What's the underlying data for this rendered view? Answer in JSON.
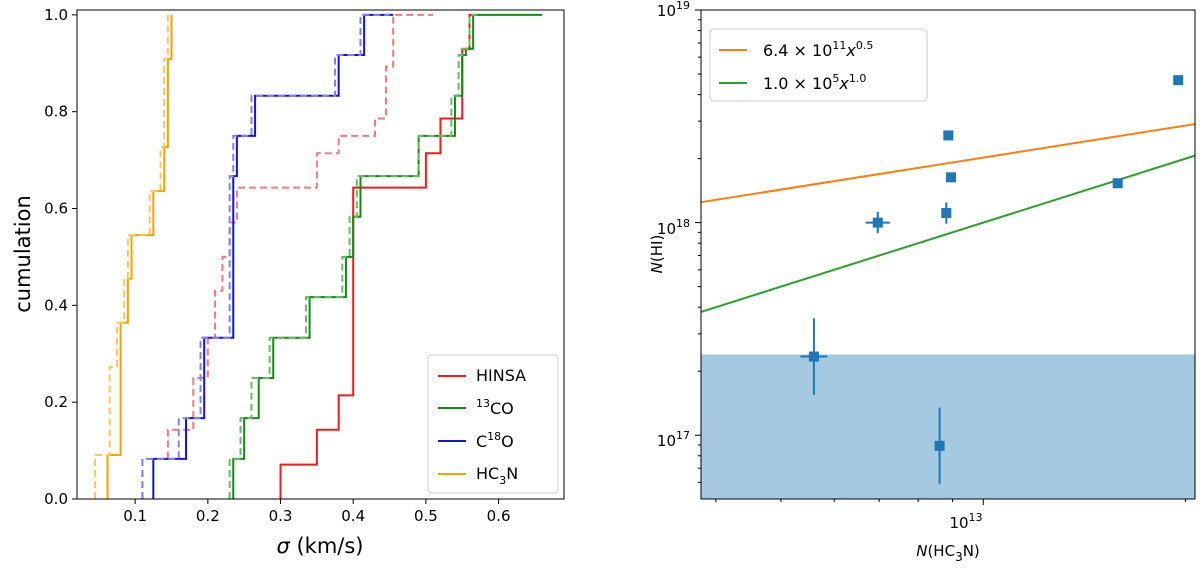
{
  "chart_data": [
    {
      "type": "line",
      "subtype": "cumulative-step",
      "xlabel": "σ (km/s)",
      "ylabel": "cumulation",
      "xlim": [
        0.02,
        0.69
      ],
      "ylim": [
        0.0,
        1.01
      ],
      "xticks": [
        0.1,
        0.2,
        0.3,
        0.4,
        0.5,
        0.6
      ],
      "xtick_labels": [
        "0.1",
        "0.2",
        "0.3",
        "0.4",
        "0.5",
        "0.6"
      ],
      "yticks": [
        0.0,
        0.2,
        0.4,
        0.6,
        0.8,
        1.0
      ],
      "ytick_labels": [
        "0.0",
        "0.2",
        "0.4",
        "0.6",
        "0.8",
        "1.0"
      ],
      "legend_position": "lower-right",
      "legend": [
        {
          "label": "HINSA",
          "color": "#ee1c1c"
        },
        {
          "label": "13CO",
          "sup": "13",
          "base": "CO",
          "color": "#138a13"
        },
        {
          "label": "C18O",
          "pre": "C",
          "sup": "18",
          "base": "O",
          "color": "#1414d8"
        },
        {
          "label": "HC3N",
          "pre": "HC",
          "sub": "3",
          "base": "N",
          "color": "#f5a300"
        }
      ],
      "series": [
        {
          "name": "HINSA",
          "style": "solid",
          "color": "#ee1c1c",
          "end": 0.57,
          "x": [
            0.3,
            0.35,
            0.38,
            0.4,
            0.4,
            0.5,
            0.52,
            0.55,
            0.56
          ],
          "y": [
            0.071,
            0.143,
            0.214,
            0.43,
            0.643,
            0.714,
            0.786,
            0.929,
            1.0
          ]
        },
        {
          "name": "HINSA (dashed)",
          "style": "dashed",
          "color": "#f37a7a",
          "end": 0.51,
          "x": [
            0.11,
            0.145,
            0.18,
            0.2,
            0.21,
            0.22,
            0.23,
            0.24,
            0.35,
            0.38,
            0.43,
            0.445,
            0.455
          ],
          "y": [
            0.083,
            0.143,
            0.25,
            0.333,
            0.43,
            0.5,
            0.571,
            0.643,
            0.714,
            0.75,
            0.786,
            0.893,
            1.0
          ]
        },
        {
          "name": "13CO",
          "style": "solid",
          "color": "#138a13",
          "end": 0.66,
          "x": [
            0.235,
            0.25,
            0.27,
            0.29,
            0.34,
            0.39,
            0.4,
            0.41,
            0.49,
            0.54,
            0.55,
            0.555,
            0.565
          ],
          "y": [
            0.083,
            0.167,
            0.25,
            0.333,
            0.417,
            0.5,
            0.583,
            0.667,
            0.75,
            0.833,
            0.917,
            0.93,
            1.0
          ]
        },
        {
          "name": "13CO (dashed)",
          "style": "dashed",
          "color": "#6ab86a",
          "end": 0.57,
          "x": [
            0.23,
            0.245,
            0.26,
            0.285,
            0.335,
            0.385,
            0.395,
            0.405,
            0.49,
            0.535,
            0.545,
            0.55,
            0.56
          ],
          "y": [
            0.083,
            0.167,
            0.25,
            0.333,
            0.417,
            0.5,
            0.583,
            0.667,
            0.75,
            0.833,
            0.917,
            0.93,
            1.0
          ]
        },
        {
          "name": "C18O",
          "style": "solid",
          "color": "#1414d8",
          "end": 0.455,
          "x": [
            0.125,
            0.17,
            0.195,
            0.235,
            0.24,
            0.265,
            0.29,
            0.38,
            0.415,
            0.455
          ],
          "y": [
            0.083,
            0.167,
            0.333,
            0.667,
            0.75,
            0.833,
            0.833,
            0.917,
            1.0,
            1.0
          ]
        },
        {
          "name": "C18O (dashed)",
          "style": "dashed",
          "color": "#8282ea",
          "end": 0.45,
          "x": [
            0.11,
            0.16,
            0.19,
            0.23,
            0.235,
            0.26,
            0.29,
            0.375,
            0.41,
            0.45
          ],
          "y": [
            0.083,
            0.167,
            0.333,
            0.667,
            0.75,
            0.833,
            0.833,
            0.917,
            1.0,
            1.0
          ]
        },
        {
          "name": "HC3N",
          "style": "solid",
          "color": "#f5a300",
          "end": 0.15,
          "x": [
            0.062,
            0.08,
            0.09,
            0.095,
            0.125,
            0.14,
            0.145,
            0.15
          ],
          "y": [
            0.091,
            0.364,
            0.455,
            0.545,
            0.636,
            0.727,
            0.909,
            1.0
          ]
        },
        {
          "name": "HC3N (dashed)",
          "style": "dashed",
          "color": "#f9c569",
          "end": 0.145,
          "x": [
            0.045,
            0.065,
            0.075,
            0.085,
            0.09,
            0.12,
            0.135,
            0.14,
            0.145
          ],
          "y": [
            0.091,
            0.273,
            0.364,
            0.455,
            0.545,
            0.636,
            0.727,
            0.909,
            1.0
          ]
        }
      ]
    },
    {
      "type": "scatter",
      "scale": "log-log",
      "xlabel": "N(HC3N)",
      "ylabel": "N(HI)",
      "xlim_log10": [
        12.58,
        13.315
      ],
      "ylim_log10": [
        16.7,
        19.0
      ],
      "xticks": [
        {
          "value_log10": 13,
          "base": "10",
          "exp": "13"
        }
      ],
      "yticks": [
        {
          "value_log10": 17,
          "base": "10",
          "exp": "17"
        },
        {
          "value_log10": 18,
          "base": "10",
          "exp": "18"
        },
        {
          "value_log10": 19,
          "base": "10",
          "exp": "19"
        }
      ],
      "legend_position": "top-left",
      "fits": [
        {
          "label": "6.4 × 10^11 x^0.5",
          "mant": "6.4 × 10",
          "exp1": "11",
          "var": "x",
          "exp2": "0.5",
          "coeff_log10": 11.806,
          "power": 0.5,
          "color": "#ff7f0e"
        },
        {
          "label": "1.0 × 10^5 x^1.0",
          "mant": "1.0 × 10",
          "exp1": "5",
          "var": "x",
          "exp2": "1.0",
          "coeff_log10": 5.0,
          "power": 1.0,
          "color": "#2ca02c"
        }
      ],
      "shaded_region": {
        "y_upper_log10": 17.38,
        "color": "#1f77b4",
        "opacity": 0.4
      },
      "points": [
        {
          "x_log10": 12.843,
          "y_log10": 18.0,
          "xerr_log10": 0.018,
          "yerr_log10": 0.05
        },
        {
          "x_log10": 12.748,
          "y_log10": 17.37,
          "xerr_log10": 0.02,
          "yerr_log10": 0.18
        },
        {
          "x_log10": 12.945,
          "y_log10": 18.045,
          "xerr_log10": 0.0,
          "yerr_log10": 0.05
        },
        {
          "x_log10": 12.952,
          "y_log10": 18.213,
          "xerr_log10": 0.005,
          "yerr_log10": 0.015
        },
        {
          "x_log10": 12.948,
          "y_log10": 18.41,
          "xerr_log10": 0.0,
          "yerr_log10": 0.0
        },
        {
          "x_log10": 12.935,
          "y_log10": 16.95,
          "xerr_log10": 0.0,
          "yerr_log10": 0.18
        },
        {
          "x_log10": 13.2,
          "y_log10": 18.185,
          "xerr_log10": 0.0,
          "yerr_log10": 0.0
        },
        {
          "x_log10": 13.29,
          "y_log10": 18.67,
          "xerr_log10": 0.0,
          "yerr_log10": 0.0
        }
      ],
      "point_color": "#1f77b4"
    }
  ]
}
